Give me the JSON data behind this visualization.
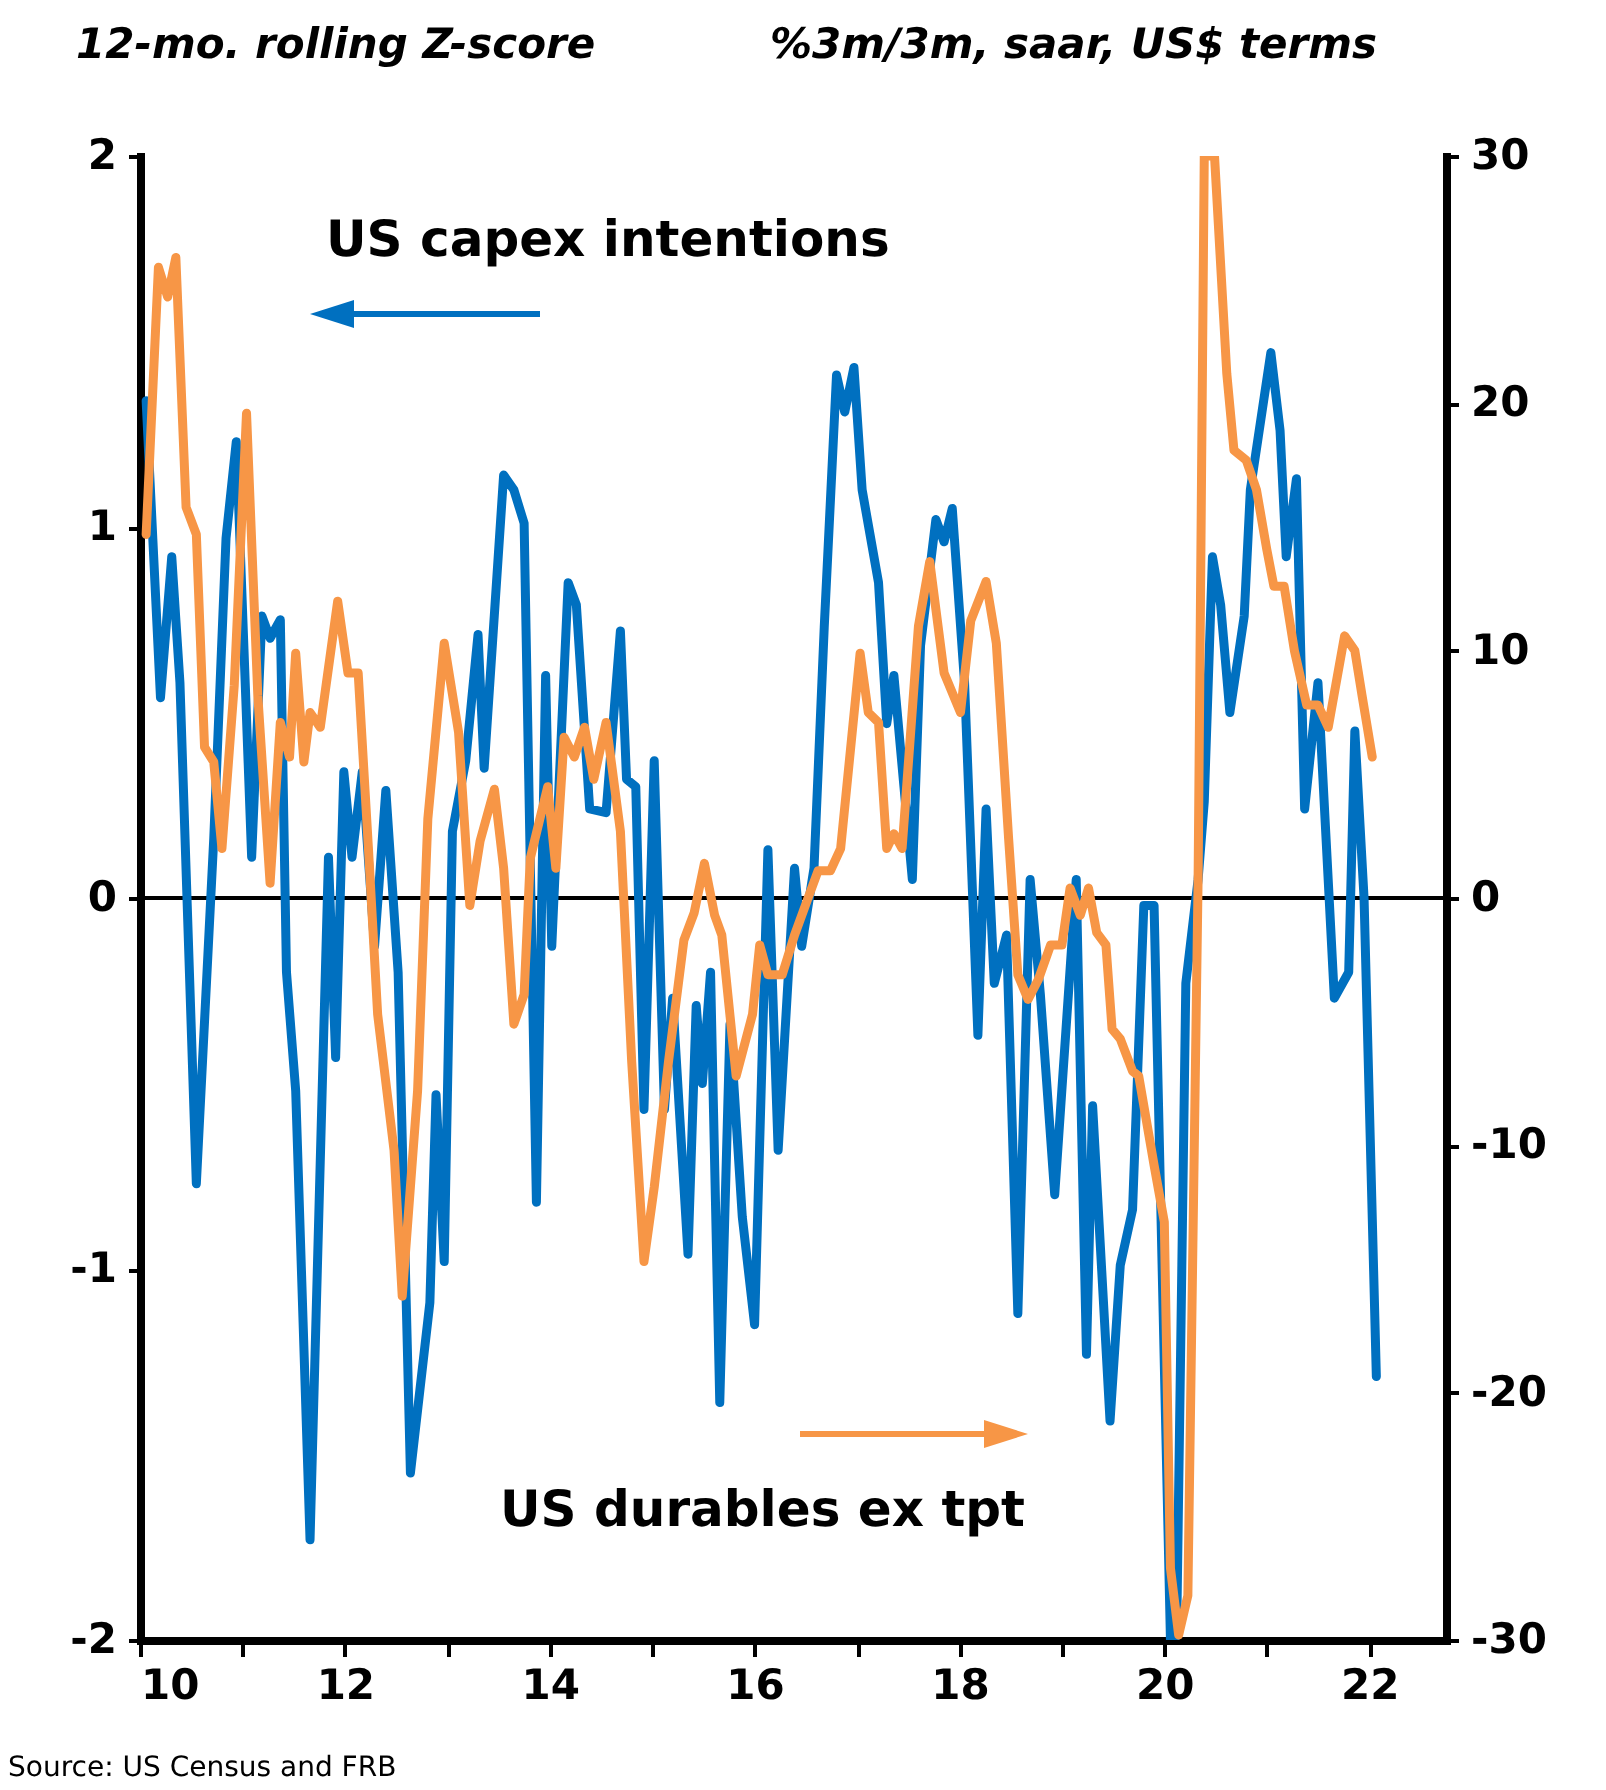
{
  "chart_data": {
    "type": "line",
    "ylabel": "12-mo. rolling Z-score",
    "y2label": "%3m/3m, saar, US$ terms",
    "annotations": [
      "Source: US Census and FRB"
    ],
    "xlim": [
      2010,
      2022.75
    ],
    "xticks": [
      {
        "value": 2010,
        "label": "10"
      },
      {
        "value": 2011,
        "label": null
      },
      {
        "value": 2012,
        "label": "12"
      },
      {
        "value": 2013,
        "label": null
      },
      {
        "value": 2014,
        "label": "14"
      },
      {
        "value": 2015,
        "label": null
      },
      {
        "value": 2016,
        "label": "16"
      },
      {
        "value": 2017,
        "label": null
      },
      {
        "value": 2018,
        "label": "18"
      },
      {
        "value": 2019,
        "label": null
      },
      {
        "value": 2020,
        "label": "20"
      },
      {
        "value": 2021,
        "label": null
      },
      {
        "value": 2022,
        "label": "22"
      }
    ],
    "ylim": [
      -2,
      2
    ],
    "yticks": [
      -2,
      -1,
      0,
      1,
      2
    ],
    "y2lim": [
      -30,
      30
    ],
    "y2ticks": [
      -30,
      -20,
      -10,
      0,
      10,
      20,
      30
    ],
    "grid": false,
    "ref_lines": [
      {
        "axis": "y",
        "value": 0,
        "color": "#000000"
      }
    ],
    "series": [
      {
        "name": "US capex intentions",
        "color": "#0070c0",
        "x": [
          2010.06,
          2010.2,
          2010.31,
          2010.39,
          2010.55,
          2010.72,
          2010.84,
          2010.94,
          2011.09,
          2011.19,
          2011.27,
          2011.37,
          2011.43,
          2011.52,
          2011.66,
          2011.84,
          2011.91,
          2011.99,
          2012.07,
          2012.17,
          2012.29,
          2012.4,
          2012.52,
          2012.64,
          2012.83,
          2012.89,
          2012.97,
          2013.05,
          2013.18,
          2013.3,
          2013.36,
          2013.55,
          2013.65,
          2013.75,
          2013.87,
          2013.96,
          2014.02,
          2014.18,
          2014.26,
          2014.39,
          2014.55,
          2014.69,
          2014.75,
          2014.84,
          2014.92,
          2015.02,
          2015.12,
          2015.2,
          2015.35,
          2015.43,
          2015.49,
          2015.57,
          2015.66,
          2015.76,
          2015.88,
          2016.0,
          2016.13,
          2016.23,
          2016.39,
          2016.46,
          2016.58,
          2016.68,
          2016.8,
          2016.88,
          2016.97,
          2017.05,
          2017.21,
          2017.29,
          2017.36,
          2017.54,
          2017.62,
          2017.77,
          2017.85,
          2017.93,
          2018.05,
          2018.18,
          2018.26,
          2018.34,
          2018.46,
          2018.57,
          2018.69,
          2018.79,
          2018.93,
          2019.14,
          2019.24,
          2019.3,
          2019.47,
          2019.57,
          2019.69,
          2019.8,
          2019.9,
          2020.06,
          2020.12,
          2020.21,
          2020.33,
          2020.39,
          2020.47,
          2020.55,
          2020.64,
          2020.78,
          2020.84,
          2021.04,
          2021.13,
          2021.19,
          2021.29,
          2021.37,
          2021.5,
          2021.66,
          2021.8,
          2021.86,
          2021.95,
          2022.07
        ],
        "values": [
          1.34,
          0.54,
          0.92,
          0.58,
          -0.77,
          0.16,
          0.97,
          1.23,
          0.11,
          0.76,
          0.7,
          0.75,
          -0.2,
          -0.52,
          -1.73,
          0.11,
          -0.43,
          0.34,
          0.11,
          0.34,
          -0.13,
          0.29,
          -0.2,
          -1.55,
          -1.09,
          -0.53,
          -0.98,
          0.18,
          0.37,
          0.71,
          0.35,
          1.14,
          1.1,
          1.01,
          -0.82,
          0.6,
          -0.13,
          0.85,
          0.79,
          0.24,
          0.23,
          0.72,
          0.32,
          0.3,
          -0.57,
          0.37,
          -0.57,
          -0.27,
          -0.96,
          -0.29,
          -0.5,
          -0.2,
          -1.36,
          -0.34,
          -0.86,
          -1.15,
          0.13,
          -0.68,
          0.08,
          -0.13,
          0.08,
          0.73,
          1.41,
          1.31,
          1.43,
          1.1,
          0.85,
          0.47,
          0.6,
          0.05,
          0.68,
          1.02,
          0.96,
          1.05,
          0.58,
          -0.37,
          0.24,
          -0.23,
          -0.1,
          -1.12,
          0.05,
          -0.26,
          -0.8,
          0.05,
          -1.23,
          -0.56,
          -1.41,
          -0.99,
          -0.84,
          -0.02,
          -0.02,
          -2.0,
          -1.99,
          -0.23,
          0.05,
          0.26,
          0.92,
          0.79,
          0.5,
          0.76,
          1.1,
          1.47,
          1.26,
          0.92,
          1.13,
          0.24,
          0.58,
          -0.27,
          -0.2,
          0.45,
          0,
          -1.29
        ]
      },
      {
        "name": "US durables ex tpt",
        "color": "#f79646",
        "axis": "y2",
        "x": [
          2010.06,
          2010.18,
          2010.27,
          2010.35,
          2010.45,
          2010.55,
          2010.63,
          2010.72,
          2010.8,
          2010.92,
          2011.04,
          2011.15,
          2011.27,
          2011.37,
          2011.46,
          2011.52,
          2011.6,
          2011.66,
          2011.76,
          2011.93,
          2012.03,
          2012.13,
          2012.23,
          2012.32,
          2012.48,
          2012.56,
          2012.71,
          2012.81,
          2012.97,
          2013.11,
          2013.22,
          2013.32,
          2013.46,
          2013.55,
          2013.65,
          2013.75,
          2013.81,
          2013.98,
          2014.06,
          2014.14,
          2014.24,
          2014.34,
          2014.43,
          2014.55,
          2014.69,
          2014.8,
          2014.92,
          2015.02,
          2015.16,
          2015.31,
          2015.41,
          2015.51,
          2015.61,
          2015.68,
          2015.82,
          2015.98,
          2016.05,
          2016.13,
          2016.27,
          2016.39,
          2016.54,
          2016.62,
          2016.74,
          2016.84,
          2017.03,
          2017.11,
          2017.21,
          2017.29,
          2017.36,
          2017.44,
          2017.6,
          2017.71,
          2017.85,
          2018.01,
          2018.11,
          2018.26,
          2018.36,
          2018.48,
          2018.57,
          2018.67,
          2018.77,
          2018.89,
          2019.0,
          2019.08,
          2019.18,
          2019.26,
          2019.34,
          2019.43,
          2019.49,
          2019.57,
          2019.69,
          2019.75,
          2019.9,
          2020.0,
          2020.06,
          2020.14,
          2020.23,
          2020.33,
          2020.39,
          2020.49,
          2020.61,
          2020.68,
          2020.8,
          2020.9,
          2021.0,
          2021.07,
          2021.17,
          2021.27,
          2021.39,
          2021.5,
          2021.6,
          2021.76,
          2021.86,
          2021.93,
          2022.03
        ],
        "values": [
          14.7,
          25.5,
          24.3,
          25.9,
          15.8,
          14.7,
          6.1,
          5.5,
          2.0,
          8.6,
          19.6,
          8.2,
          0.6,
          7.1,
          5.7,
          9.9,
          5.5,
          7.5,
          6.9,
          12.0,
          9.1,
          9.1,
          2.0,
          -4.7,
          -10.2,
          -16.1,
          -7.8,
          3.2,
          10.3,
          6.7,
          -0.3,
          2.3,
          4.4,
          1.2,
          -5.1,
          -3.9,
          1.6,
          4.5,
          1.2,
          6.5,
          5.7,
          6.9,
          4.8,
          7.1,
          2.7,
          -6.6,
          -14.7,
          -11.7,
          -6.6,
          -1.7,
          -0.6,
          1.4,
          -0.7,
          -1.5,
          -7.2,
          -4.7,
          -1.9,
          -3.1,
          -3.1,
          -1.5,
          0.2,
          1.1,
          1.1,
          2.0,
          9.9,
          7.5,
          7.1,
          2.0,
          2.6,
          2.0,
          11.0,
          13.6,
          9.1,
          7.5,
          11.2,
          12.8,
          10.3,
          2.4,
          -3.1,
          -4.1,
          -3.3,
          -1.9,
          -1.9,
          0.4,
          -0.7,
          0.4,
          -1.4,
          -1.9,
          -5.3,
          -5.7,
          -7.0,
          -7.2,
          -10.8,
          -13.1,
          -27.1,
          -29.8,
          -28.2,
          0.8,
          30,
          30,
          21.2,
          18.1,
          17.7,
          16.5,
          14.1,
          12.6,
          12.6,
          10.0,
          7.8,
          7.8,
          6.9,
          10.6,
          10.0,
          8.2,
          5.7
        ]
      }
    ]
  }
}
